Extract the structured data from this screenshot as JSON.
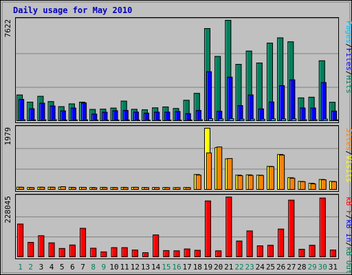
{
  "title": "Daily usage for May 2010",
  "colors": {
    "background": "#ffffff",
    "title": "#0000c0",
    "panel": "#c0c0c0",
    "hits": "#00805c",
    "files": "#0000ff",
    "pages": "#00c0ff",
    "visits": "#ffff00",
    "sites": "#ff8000",
    "kb_in": "#0000ff",
    "kb_out": "#00805c",
    "kb_f": "#ff0000",
    "day_weekday": "#000000",
    "day_weekend": "#00805c"
  },
  "chart_data": [
    {
      "type": "bar",
      "name": "hits-files-pages",
      "categories": [
        "1",
        "2",
        "3",
        "4",
        "5",
        "6",
        "7",
        "8",
        "9",
        "10",
        "11",
        "12",
        "13",
        "14",
        "15",
        "16",
        "17",
        "18",
        "19",
        "20",
        "21",
        "22",
        "23",
        "24",
        "25",
        "26",
        "27",
        "28",
        "29",
        "30",
        "31"
      ],
      "ymax_label": "7622",
      "ylim": [
        0,
        7622
      ],
      "legend": [
        {
          "label": "Pages",
          "color": "#00c0ff"
        },
        {
          "label": "/",
          "color": "#000000"
        },
        {
          "label": "Files",
          "color": "#0000ff"
        },
        {
          "label": "/",
          "color": "#000000"
        },
        {
          "label": "Hits",
          "color": "#00805c"
        }
      ],
      "series": [
        {
          "name": "Hits",
          "values": [
            1990,
            1450,
            1890,
            1490,
            1110,
            1320,
            1450,
            900,
            920,
            1000,
            1530,
            910,
            870,
            1020,
            1090,
            970,
            1590,
            2110,
            7000,
            4900,
            7620,
            4300,
            5300,
            4400,
            5900,
            6300,
            6000,
            1770,
            1820,
            4570,
            1440
          ]
        },
        {
          "name": "Files",
          "values": [
            1650,
            950,
            1370,
            1160,
            790,
            1000,
            1390,
            550,
            690,
            800,
            820,
            700,
            620,
            700,
            700,
            740,
            580,
            820,
            3740,
            760,
            3330,
            1190,
            1990,
            940,
            1460,
            2690,
            3130,
            1010,
            1010,
            2930,
            770
          ]
        },
        {
          "name": "Pages",
          "values": [
            125,
            110,
            120,
            125,
            100,
            110,
            115,
            95,
            90,
            100,
            105,
            95,
            90,
            95,
            100,
            90,
            105,
            125,
            200,
            185,
            200,
            165,
            170,
            160,
            190,
            180,
            185,
            120,
            125,
            170,
            110
          ]
        }
      ]
    },
    {
      "type": "bar",
      "name": "visits-sites",
      "categories": [
        "1",
        "2",
        "3",
        "4",
        "5",
        "6",
        "7",
        "8",
        "9",
        "10",
        "11",
        "12",
        "13",
        "14",
        "15",
        "16",
        "17",
        "18",
        "19",
        "20",
        "21",
        "22",
        "23",
        "24",
        "25",
        "26",
        "27",
        "28",
        "29",
        "30",
        "31"
      ],
      "ymax_label": "1979",
      "ylim": [
        0,
        1979
      ],
      "legend": [
        {
          "label": "Sites",
          "color": "#ff8000"
        },
        {
          "label": "/",
          "color": "#000000"
        },
        {
          "label": "Visits",
          "color": "#ffff00"
        }
      ],
      "series": [
        {
          "name": "Visits",
          "values": [
            95,
            85,
            95,
            95,
            95,
            90,
            90,
            85,
            90,
            85,
            90,
            90,
            85,
            85,
            85,
            80,
            85,
            500,
            1979,
            1360,
            1000,
            480,
            490,
            480,
            760,
            1140,
            400,
            280,
            220,
            340,
            280
          ]
        },
        {
          "name": "Sites",
          "values": [
            90,
            80,
            90,
            90,
            110,
            80,
            85,
            75,
            80,
            80,
            80,
            90,
            80,
            80,
            80,
            80,
            80,
            480,
            1190,
            1380,
            1010,
            460,
            470,
            470,
            750,
            1120,
            380,
            270,
            200,
            330,
            270
          ]
        }
      ]
    },
    {
      "type": "bar",
      "name": "kbytes",
      "categories": [
        "1",
        "2",
        "3",
        "4",
        "5",
        "6",
        "7",
        "8",
        "9",
        "10",
        "11",
        "12",
        "13",
        "14",
        "15",
        "16",
        "17",
        "18",
        "19",
        "20",
        "21",
        "22",
        "23",
        "24",
        "25",
        "26",
        "27",
        "28",
        "29",
        "30",
        "31"
      ],
      "ymax_label": "228045",
      "ylim": [
        0,
        228045
      ],
      "legend": [
        {
          "label": "kB F",
          "color": "#ff0000"
        },
        {
          "label": "/",
          "color": "#000000"
        },
        {
          "label": "kB In",
          "color": "#0000ff"
        },
        {
          "label": "/",
          "color": "#000000"
        },
        {
          "label": "kB Out",
          "color": "#00805c"
        }
      ],
      "series": [
        {
          "name": "kB F",
          "values": [
            126000,
            57000,
            82000,
            55000,
            34000,
            47000,
            110000,
            35000,
            21000,
            37000,
            37000,
            28000,
            18000,
            85000,
            26000,
            25000,
            32000,
            27000,
            213000,
            25000,
            228045,
            62000,
            100000,
            44000,
            46000,
            107000,
            216000,
            31000,
            46000,
            224000,
            28000
          ]
        }
      ]
    }
  ],
  "days": [
    {
      "label": "1",
      "weekend": true
    },
    {
      "label": "2",
      "weekend": true
    },
    {
      "label": "3",
      "weekend": false
    },
    {
      "label": "4",
      "weekend": false
    },
    {
      "label": "5",
      "weekend": false
    },
    {
      "label": "6",
      "weekend": false
    },
    {
      "label": "7",
      "weekend": false
    },
    {
      "label": "8",
      "weekend": true
    },
    {
      "label": "9",
      "weekend": true
    },
    {
      "label": "10",
      "weekend": false
    },
    {
      "label": "11",
      "weekend": false
    },
    {
      "label": "12",
      "weekend": false
    },
    {
      "label": "13",
      "weekend": false
    },
    {
      "label": "14",
      "weekend": false
    },
    {
      "label": "15",
      "weekend": true
    },
    {
      "label": "16",
      "weekend": true
    },
    {
      "label": "17",
      "weekend": false
    },
    {
      "label": "18",
      "weekend": false
    },
    {
      "label": "19",
      "weekend": false
    },
    {
      "label": "20",
      "weekend": false
    },
    {
      "label": "21",
      "weekend": false
    },
    {
      "label": "22",
      "weekend": true
    },
    {
      "label": "23",
      "weekend": true
    },
    {
      "label": "24",
      "weekend": false
    },
    {
      "label": "25",
      "weekend": false
    },
    {
      "label": "26",
      "weekend": false
    },
    {
      "label": "27",
      "weekend": false
    },
    {
      "label": "28",
      "weekend": false
    },
    {
      "label": "29",
      "weekend": true
    },
    {
      "label": "30",
      "weekend": true
    },
    {
      "label": "31",
      "weekend": false
    }
  ]
}
